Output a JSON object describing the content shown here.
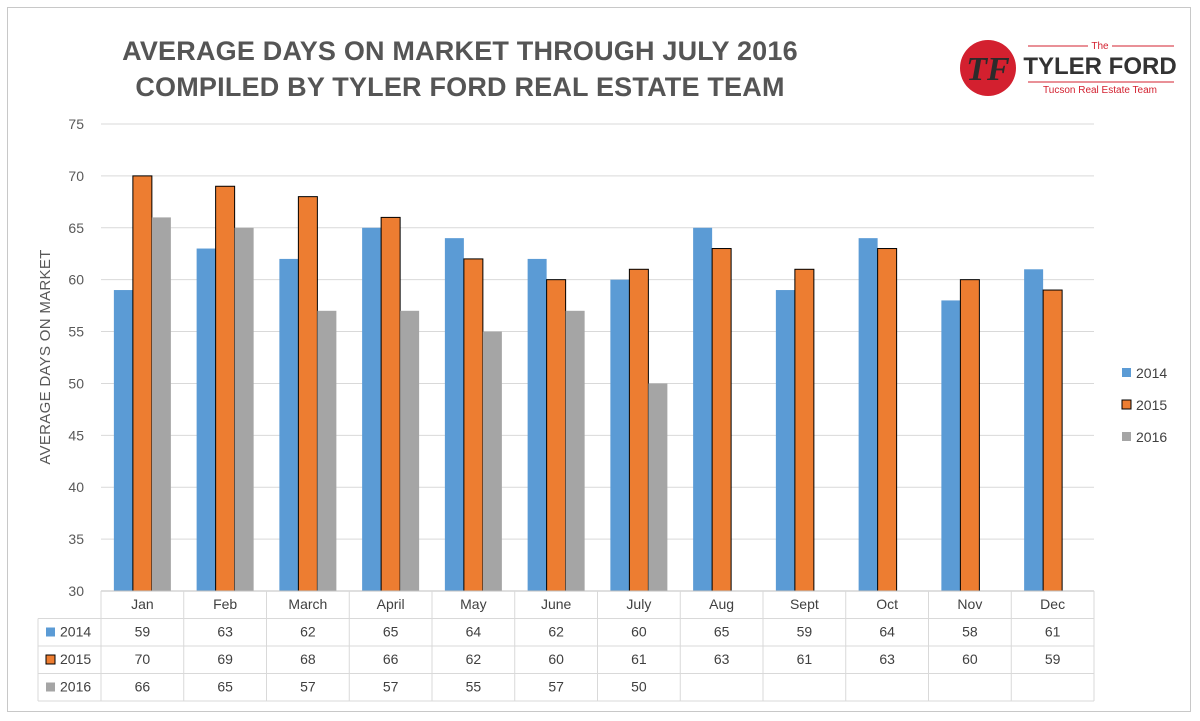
{
  "chart_data": {
    "type": "bar",
    "title": "AVERAGE DAYS ON MARKET THROUGH JULY 2016",
    "subtitle": "COMPILED BY TYLER FORD REAL ESTATE TEAM",
    "ylabel": "AVERAGE DAYS ON MARKET",
    "xlabel": "",
    "ylim": [
      30,
      75
    ],
    "yticks": [
      "30",
      "35",
      "40",
      "45",
      "50",
      "55",
      "60",
      "65",
      "70",
      "75"
    ],
    "grid": true,
    "legend_position": "right",
    "data_table": true,
    "categories": [
      "Jan",
      "Feb",
      "March",
      "April",
      "May",
      "June",
      "July",
      "Aug",
      "Sept",
      "Oct",
      "Nov",
      "Dec"
    ],
    "series": [
      {
        "name": "2014",
        "color": "#5b9bd5",
        "values": [
          59,
          63,
          62,
          65,
          64,
          62,
          60,
          65,
          59,
          64,
          58,
          61
        ]
      },
      {
        "name": "2015",
        "color": "#ed7d31",
        "values": [
          70,
          69,
          68,
          66,
          62,
          60,
          61,
          63,
          61,
          63,
          60,
          59
        ]
      },
      {
        "name": "2016",
        "color": "#a5a5a5",
        "values": [
          66,
          65,
          57,
          57,
          55,
          57,
          50,
          null,
          null,
          null,
          null,
          null
        ]
      }
    ]
  },
  "logo": {
    "monogram": "TF",
    "small_text": "The",
    "brand_text": "TYLER FORD",
    "tagline": "Tucson Real Estate Team",
    "colors": {
      "red": "#d3202f",
      "dark": "#3a3a3a"
    }
  }
}
